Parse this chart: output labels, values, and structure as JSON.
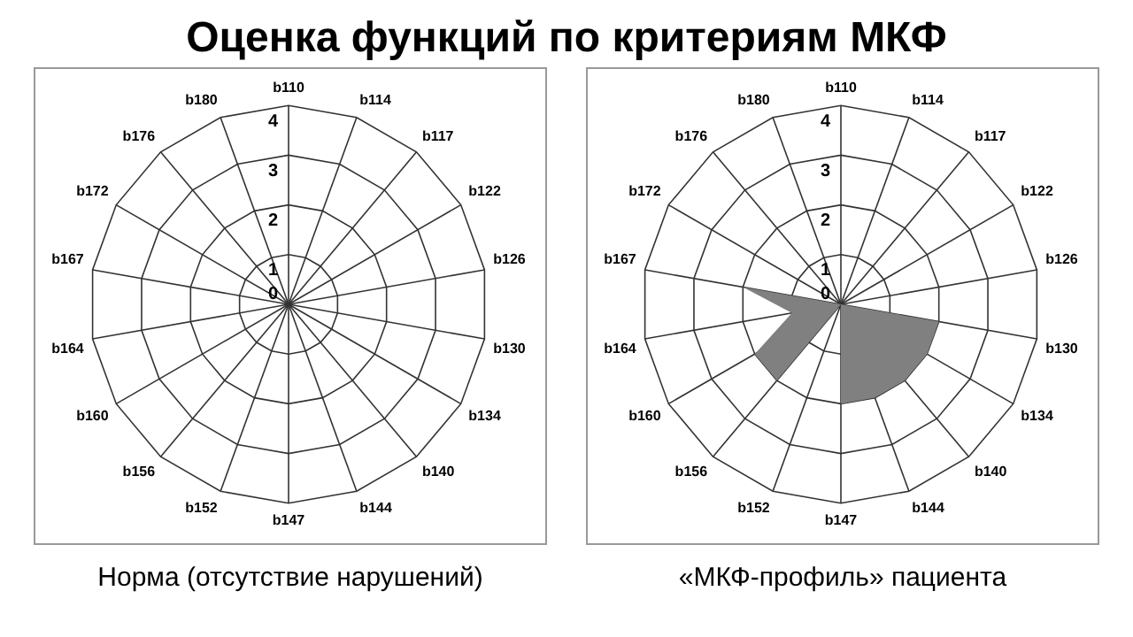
{
  "chart_data": [
    {
      "type": "radar",
      "title": "Оценка функций по критериям МКФ",
      "categories": [
        "b110",
        "b114",
        "b117",
        "b122",
        "b126",
        "b130",
        "b134",
        "b140",
        "b144",
        "b147",
        "b152",
        "b156",
        "b160",
        "b164",
        "b167",
        "b172",
        "b176",
        "b180"
      ],
      "ylim": [
        0,
        4
      ],
      "yticks": [
        0,
        1,
        2,
        3,
        4
      ],
      "grid": true,
      "marker": "none",
      "annotations": [
        "Норма (отсутствие нарушений)"
      ]
    },
    {
      "type": "radar",
      "categories": [
        "b110",
        "b114",
        "b117",
        "b122",
        "b126",
        "b130",
        "b134",
        "b140",
        "b144",
        "b147",
        "b152",
        "b156",
        "b160",
        "b164",
        "b167",
        "b172",
        "b176",
        "b180"
      ],
      "series": [
        {
          "color": "#808080",
          "values": [
            0,
            0,
            0,
            0,
            0,
            2,
            2,
            2,
            2,
            2,
            0,
            2,
            2,
            1,
            2,
            0,
            0,
            0
          ]
        }
      ],
      "ylim": [
        0,
        4
      ],
      "yticks": [
        0,
        1,
        2,
        3,
        4
      ],
      "grid": true,
      "marker": "none",
      "annotations": [
        "«МКФ-профиль» пациента"
      ]
    }
  ]
}
